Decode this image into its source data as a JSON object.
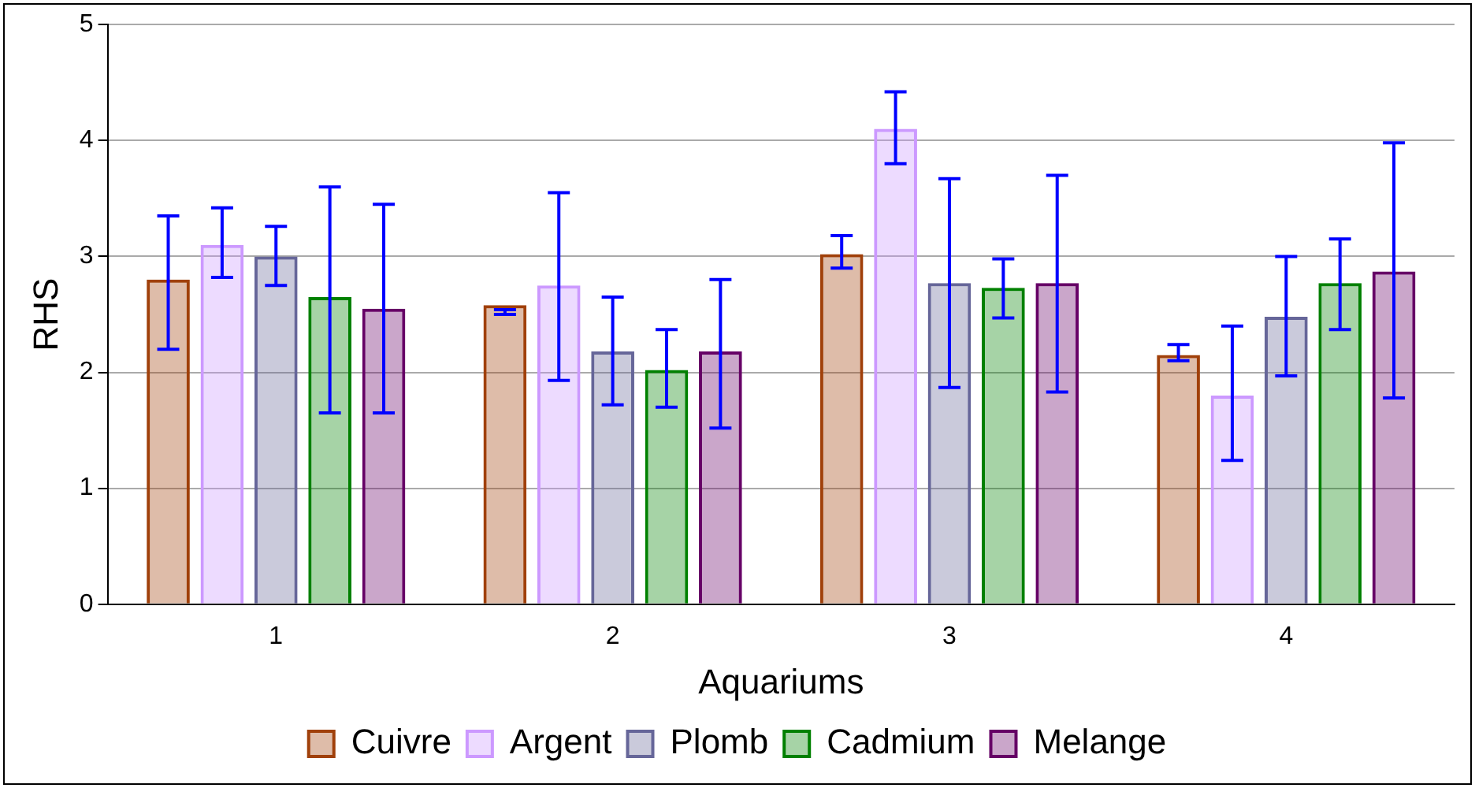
{
  "chart_data": {
    "type": "bar",
    "xlabel": "Aquariums",
    "ylabel": "RHS",
    "categories": [
      "1",
      "2",
      "3",
      "4"
    ],
    "series": [
      {
        "name": "Cuivre",
        "color": "#a0400a",
        "values": [
          2.8,
          2.58,
          3.02,
          2.15
        ],
        "errors": [
          [
            2.2,
            3.35
          ],
          [
            2.5,
            2.54
          ],
          [
            2.9,
            3.18
          ],
          [
            2.1,
            2.24
          ]
        ]
      },
      {
        "name": "Argent",
        "color": "#cc99ff",
        "values": [
          3.1,
          2.75,
          4.1,
          1.8
        ],
        "errors": [
          [
            2.82,
            3.42
          ],
          [
            1.93,
            3.55
          ],
          [
            3.8,
            4.42
          ],
          [
            1.24,
            2.4
          ]
        ]
      },
      {
        "name": "Plomb",
        "color": "#666699",
        "values": [
          3.0,
          2.18,
          2.77,
          2.48
        ],
        "errors": [
          [
            2.75,
            3.26
          ],
          [
            1.72,
            2.65
          ],
          [
            1.87,
            3.67
          ],
          [
            1.97,
            3.0
          ]
        ]
      },
      {
        "name": "Cadmium",
        "color": "#008000",
        "values": [
          2.65,
          2.02,
          2.73,
          2.77
        ],
        "errors": [
          [
            1.65,
            3.6
          ],
          [
            1.7,
            2.37
          ],
          [
            2.47,
            2.98
          ],
          [
            2.37,
            3.15
          ]
        ]
      },
      {
        "name": "Melange",
        "color": "#660066",
        "values": [
          2.55,
          2.18,
          2.77,
          2.87
        ],
        "errors": [
          [
            1.65,
            3.45
          ],
          [
            1.52,
            2.8
          ],
          [
            1.83,
            3.7
          ],
          [
            1.78,
            3.98
          ]
        ]
      }
    ],
    "ylim": [
      0,
      5
    ],
    "yticks": [
      0,
      1,
      2,
      3,
      4,
      5
    ],
    "grid": "y",
    "legend": "bottom"
  }
}
